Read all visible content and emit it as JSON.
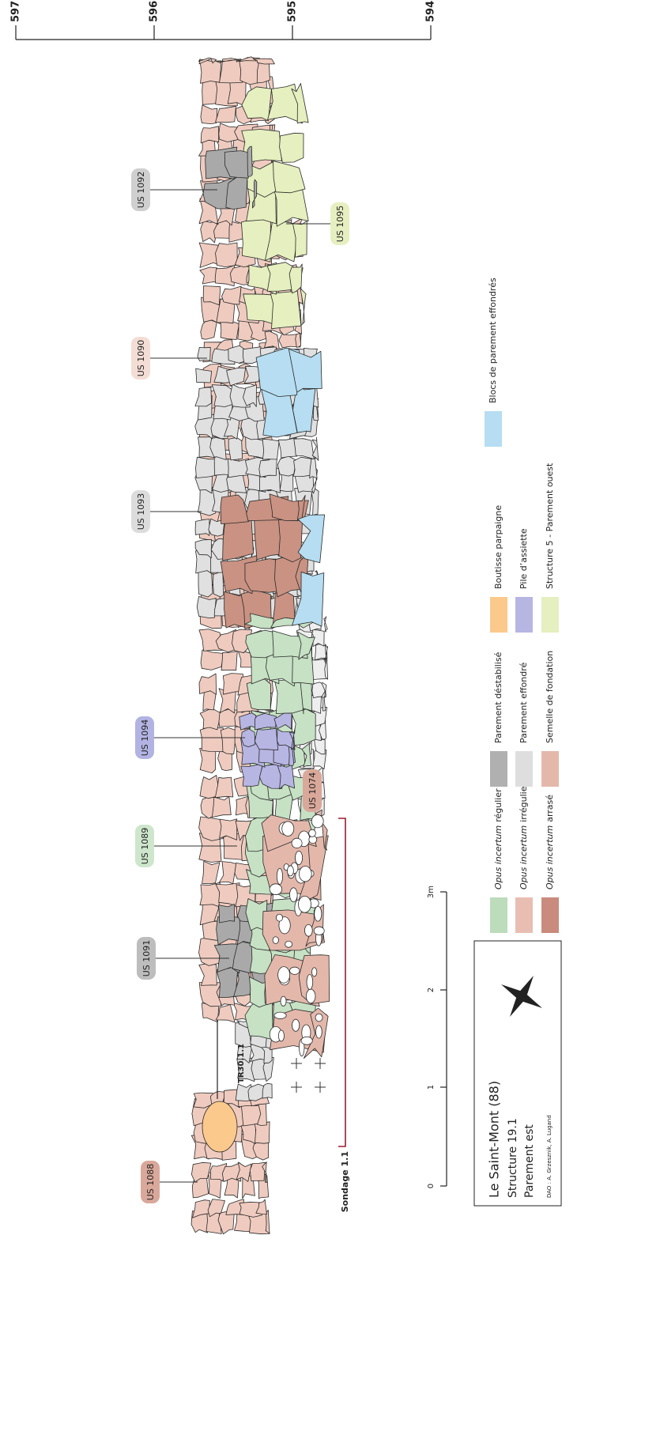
{
  "elevation_scale": {
    "ticks": [
      "597",
      "596",
      "595",
      "594"
    ]
  },
  "labels": [
    "US 1092",
    "US 1095",
    "US 1090",
    "US 1093",
    "US 1094",
    "US 1089",
    "US 1074",
    "US 1091",
    "US 1088"
  ],
  "trench": "TR30.1.1",
  "sondage": "Sondage 1.1",
  "scale_bar": {
    "ticks": [
      "0",
      "1",
      "2",
      "3m"
    ]
  },
  "title_box": {
    "lines": [
      "Le Saint-Mont (88)",
      "Structure 19.1",
      "Parement est"
    ],
    "credit": "DAO : A. Grzesznik, A. Lugand"
  },
  "legend": [
    {
      "em": "Opus incertum",
      "rest": "régulier"
    },
    {
      "em": "Opus incertum",
      "rest": "irrégulier"
    },
    {
      "em": "Opus incertum",
      "rest": "arrasé"
    },
    {
      "rest": "Parement déstabilisé"
    },
    {
      "rest": "Parement effondré"
    },
    {
      "rest": "Semelle de fondation"
    },
    {
      "rest": "Boutisse parpaigne"
    },
    {
      "rest": "Pile d’assiette"
    },
    {
      "rest": "Structure 5 - Parement ouest"
    },
    {
      "rest": "Blocs de parement effondrés"
    }
  ]
}
